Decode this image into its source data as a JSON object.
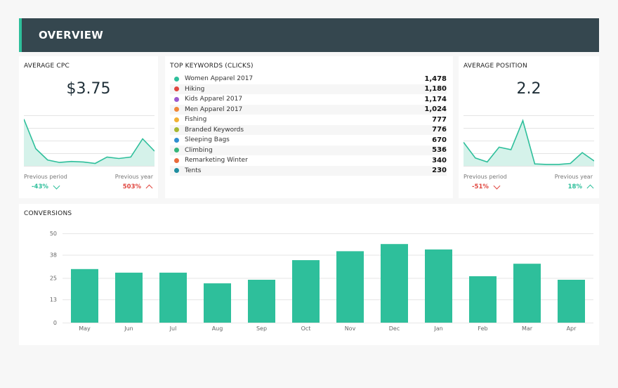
{
  "header": {
    "title": "OVERVIEW"
  },
  "cpc": {
    "title": "AVERAGE CPC",
    "value": "$3.75",
    "prev_period_label": "Previous period",
    "prev_year_label": "Previous year",
    "prev_period_change": "-43%",
    "prev_year_change": "503%",
    "spark": [
      0.95,
      0.35,
      0.12,
      0.07,
      0.09,
      0.08,
      0.05,
      0.18,
      0.15,
      0.18,
      0.55,
      0.3
    ]
  },
  "keywords": {
    "title": "TOP KEYWORDS (CLICKS)",
    "items": [
      {
        "name": "Women Apparel 2017",
        "value": "1,478",
        "color": "#2ebf9b"
      },
      {
        "name": "Hiking",
        "value": "1,180",
        "color": "#e0463f"
      },
      {
        "name": "Kids Apparel 2017",
        "value": "1,174",
        "color": "#9b59d0"
      },
      {
        "name": "Men Apparel 2017",
        "value": "1,024",
        "color": "#f0883a"
      },
      {
        "name": "Fishing",
        "value": "777",
        "color": "#f2b134"
      },
      {
        "name": "Branded Keywords",
        "value": "776",
        "color": "#a7b832"
      },
      {
        "name": "Sleeping Bags",
        "value": "670",
        "color": "#2f8ed1"
      },
      {
        "name": "Climbing",
        "value": "536",
        "color": "#35b57a"
      },
      {
        "name": "Remarketing Winter",
        "value": "340",
        "color": "#ea6b3c"
      },
      {
        "name": "Tents",
        "value": "230",
        "color": "#1f8ea0"
      }
    ]
  },
  "position": {
    "title": "AVERAGE POSITION",
    "value": "2.2",
    "prev_period_label": "Previous period",
    "prev_year_label": "Previous year",
    "prev_period_change": "-51%",
    "prev_year_change": "18%",
    "spark": [
      0.48,
      0.16,
      0.08,
      0.38,
      0.33,
      0.92,
      0.04,
      0.03,
      0.03,
      0.05,
      0.27,
      0.1
    ]
  },
  "conversions": {
    "title": "CONVERSIONS"
  },
  "chart_data": {
    "type": "bar",
    "title": "CONVERSIONS",
    "categories": [
      "May",
      "Jun",
      "Jul",
      "Aug",
      "Sep",
      "Oct",
      "Nov",
      "Dec",
      "Jan",
      "Feb",
      "Mar",
      "Apr"
    ],
    "values": [
      30,
      28,
      28,
      22,
      24,
      35,
      40,
      44,
      41,
      26,
      33,
      24
    ],
    "yticks": [
      "0",
      "13",
      "25",
      "38",
      "50"
    ],
    "ylim": [
      0,
      50
    ],
    "grid": true,
    "bar_color": "#2ebf9b"
  }
}
